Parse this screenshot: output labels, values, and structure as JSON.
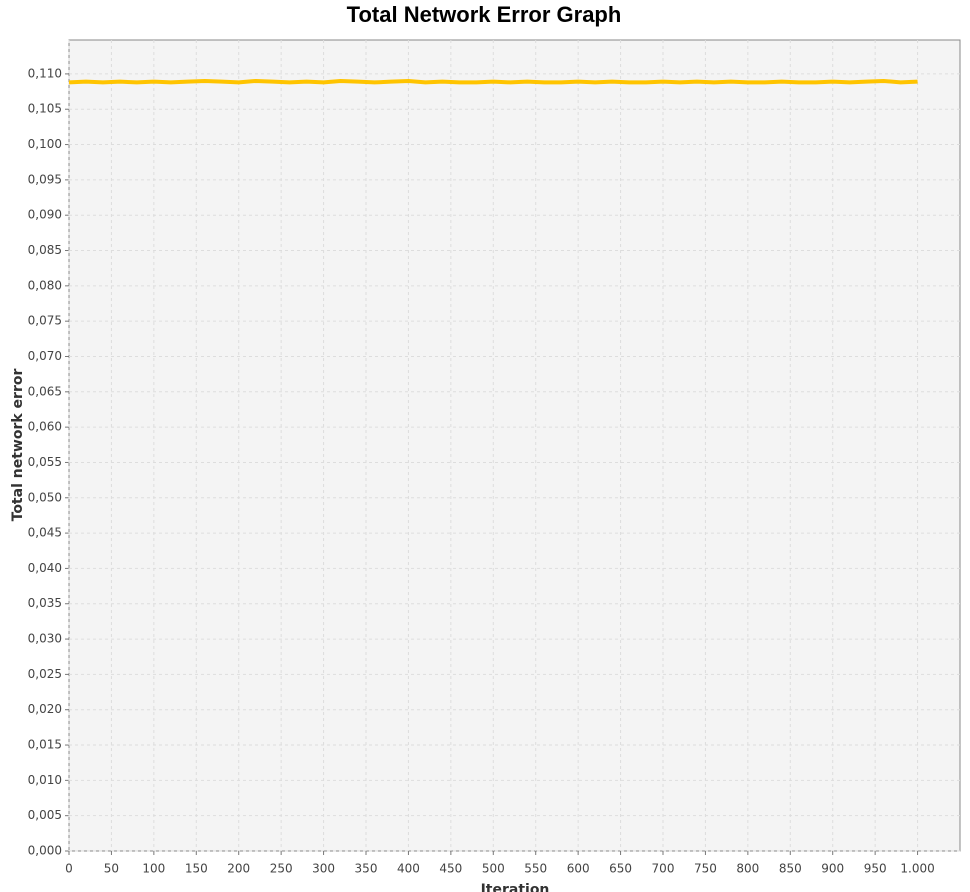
{
  "chart_data": {
    "type": "line",
    "title": "Total Network Error Graph",
    "x_label": "Iteration",
    "y_label": "Total network error",
    "x": [
      0,
      20,
      40,
      60,
      80,
      100,
      120,
      140,
      160,
      180,
      200,
      220,
      240,
      260,
      280,
      300,
      320,
      340,
      360,
      380,
      400,
      420,
      440,
      460,
      480,
      500,
      520,
      540,
      560,
      580,
      600,
      620,
      640,
      660,
      680,
      700,
      720,
      740,
      760,
      780,
      800,
      820,
      840,
      860,
      880,
      900,
      920,
      940,
      960,
      980,
      1000
    ],
    "series": [
      {
        "name": "Total network error",
        "color": "#ffc400",
        "values": [
          0.1088,
          0.1089,
          0.1088,
          0.1089,
          0.1088,
          0.1089,
          0.1088,
          0.1089,
          0.109,
          0.1089,
          0.1088,
          0.109,
          0.1089,
          0.1088,
          0.1089,
          0.1088,
          0.109,
          0.1089,
          0.1088,
          0.1089,
          0.109,
          0.1088,
          0.1089,
          0.1088,
          0.1088,
          0.1089,
          0.1088,
          0.1089,
          0.1088,
          0.1088,
          0.1089,
          0.1088,
          0.1089,
          0.1088,
          0.1088,
          0.1089,
          0.1088,
          0.1089,
          0.1088,
          0.1089,
          0.1088,
          0.1088,
          0.1089,
          0.1088,
          0.1088,
          0.1089,
          0.1088,
          0.1089,
          0.109,
          0.1088,
          0.1089
        ]
      }
    ],
    "xlim": [
      0,
      1050
    ],
    "ylim": [
      0,
      0.1148
    ],
    "xticks": [
      0,
      50,
      100,
      150,
      200,
      250,
      300,
      350,
      400,
      450,
      500,
      550,
      600,
      650,
      700,
      750,
      800,
      850,
      900,
      950,
      {
        "value": 1000,
        "label": "1.000"
      }
    ],
    "yticks": [
      {
        "value": 0,
        "label": "0,000"
      },
      {
        "value": 0.005,
        "label": "0,005"
      },
      {
        "value": 0.01,
        "label": "0,010"
      },
      {
        "value": 0.015,
        "label": "0,015"
      },
      {
        "value": 0.02,
        "label": "0,020"
      },
      {
        "value": 0.025,
        "label": "0,025"
      },
      {
        "value": 0.03,
        "label": "0,030"
      },
      {
        "value": 0.035,
        "label": "0,035"
      },
      {
        "value": 0.04,
        "label": "0,040"
      },
      {
        "value": 0.045,
        "label": "0,045"
      },
      {
        "value": 0.05,
        "label": "0,050"
      },
      {
        "value": 0.055,
        "label": "0,055"
      },
      {
        "value": 0.06,
        "label": "0,060"
      },
      {
        "value": 0.065,
        "label": "0,065"
      },
      {
        "value": 0.07,
        "label": "0,070"
      },
      {
        "value": 0.075,
        "label": "0,075"
      },
      {
        "value": 0.08,
        "label": "0,080"
      },
      {
        "value": 0.085,
        "label": "0,085"
      },
      {
        "value": 0.09,
        "label": "0,090"
      },
      {
        "value": 0.095,
        "label": "0,095"
      },
      {
        "value": 0.1,
        "label": "0,100"
      },
      {
        "value": 0.105,
        "label": "0,105"
      },
      {
        "value": 0.11,
        "label": "0,110"
      }
    ],
    "grid": true
  }
}
